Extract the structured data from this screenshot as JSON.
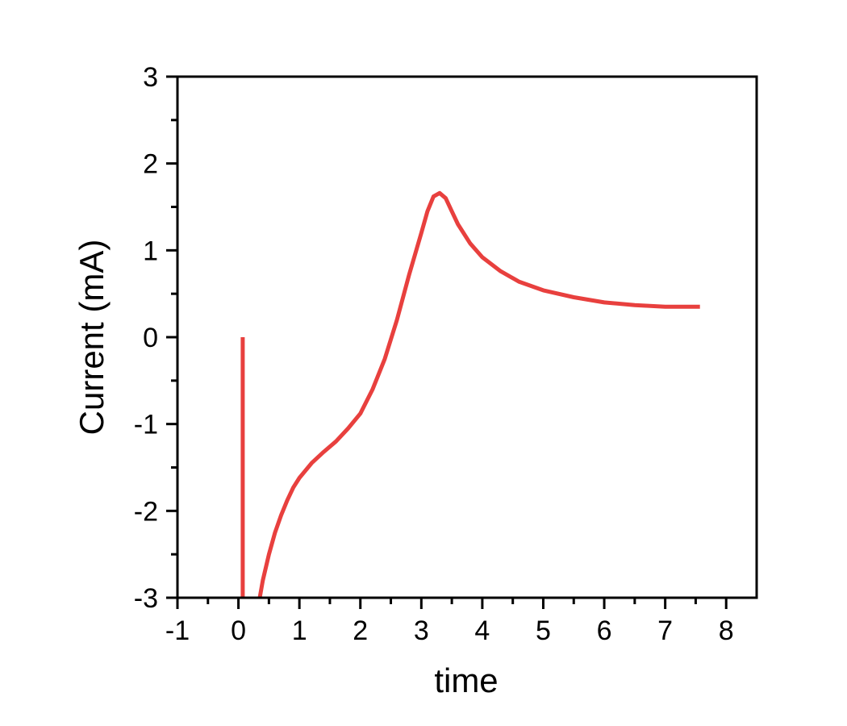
{
  "chart_data": {
    "type": "line",
    "title": "",
    "xlabel": "time",
    "ylabel": "Current (mA)",
    "xlim": [
      -1,
      8.5
    ],
    "ylim": [
      -3,
      3
    ],
    "x_ticks": [
      "-1",
      "0",
      "1",
      "2",
      "3",
      "4",
      "5",
      "6",
      "7",
      "8"
    ],
    "y_ticks": [
      "-3",
      "-2",
      "-1",
      "0",
      "1",
      "2",
      "3"
    ],
    "grid": false,
    "legend": "none",
    "series": [
      {
        "color": "#e8403e",
        "segments": [
          {
            "x": [
              0.07,
              0.07
            ],
            "y": [
              0.0,
              -3.0
            ]
          },
          {
            "x": [
              0.35,
              0.4,
              0.5,
              0.6,
              0.7,
              0.8,
              0.9,
              1.0,
              1.2,
              1.4,
              1.6,
              1.8,
              2.0,
              2.2,
              2.4,
              2.6,
              2.8,
              3.0,
              3.1,
              3.2,
              3.3,
              3.4,
              3.5,
              3.6,
              3.8,
              4.0,
              4.3,
              4.6,
              5.0,
              5.5,
              6.0,
              6.5,
              7.0,
              7.5,
              7.57
            ],
            "y": [
              -3.0,
              -2.8,
              -2.5,
              -2.25,
              -2.05,
              -1.88,
              -1.73,
              -1.62,
              -1.45,
              -1.32,
              -1.2,
              -1.05,
              -0.88,
              -0.6,
              -0.25,
              0.2,
              0.72,
              1.2,
              1.45,
              1.62,
              1.66,
              1.6,
              1.45,
              1.3,
              1.08,
              0.92,
              0.76,
              0.64,
              0.54,
              0.46,
              0.4,
              0.37,
              0.35,
              0.35,
              0.35
            ]
          }
        ]
      }
    ]
  }
}
